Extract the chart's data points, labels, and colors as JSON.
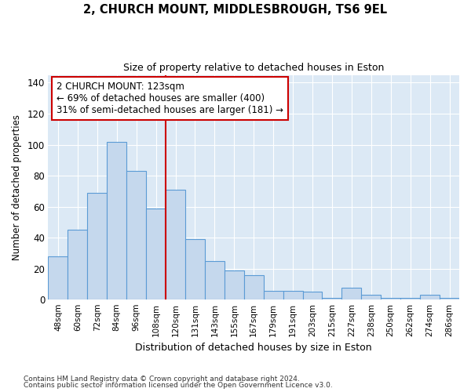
{
  "title": "2, CHURCH MOUNT, MIDDLESBROUGH, TS6 9EL",
  "subtitle": "Size of property relative to detached houses in Eston",
  "xlabel": "Distribution of detached houses by size in Eston",
  "ylabel": "Number of detached properties",
  "categories": [
    "48sqm",
    "60sqm",
    "72sqm",
    "84sqm",
    "96sqm",
    "108sqm",
    "120sqm",
    "131sqm",
    "143sqm",
    "155sqm",
    "167sqm",
    "179sqm",
    "191sqm",
    "203sqm",
    "215sqm",
    "227sqm",
    "238sqm",
    "250sqm",
    "262sqm",
    "274sqm",
    "286sqm"
  ],
  "values": [
    28,
    45,
    69,
    102,
    83,
    59,
    71,
    39,
    25,
    19,
    16,
    6,
    6,
    5,
    1,
    8,
    3,
    1,
    1,
    3,
    1
  ],
  "bar_color": "#c5d8ed",
  "bar_edge_color": "#5b9bd5",
  "plot_bg_color": "#dce9f5",
  "fig_bg_color": "#ffffff",
  "grid_color": "#ffffff",
  "vline_x_index": 6,
  "vline_color": "#cc0000",
  "annotation_line1": "2 CHURCH MOUNT: 123sqm",
  "annotation_line2": "← 69% of detached houses are smaller (400)",
  "annotation_line3": "31% of semi-detached houses are larger (181) →",
  "annotation_box_color": "#cc0000",
  "footer1": "Contains HM Land Registry data © Crown copyright and database right 2024.",
  "footer2": "Contains public sector information licensed under the Open Government Licence v3.0.",
  "ylim": [
    0,
    145
  ],
  "yticks": [
    0,
    20,
    40,
    60,
    80,
    100,
    120,
    140
  ]
}
